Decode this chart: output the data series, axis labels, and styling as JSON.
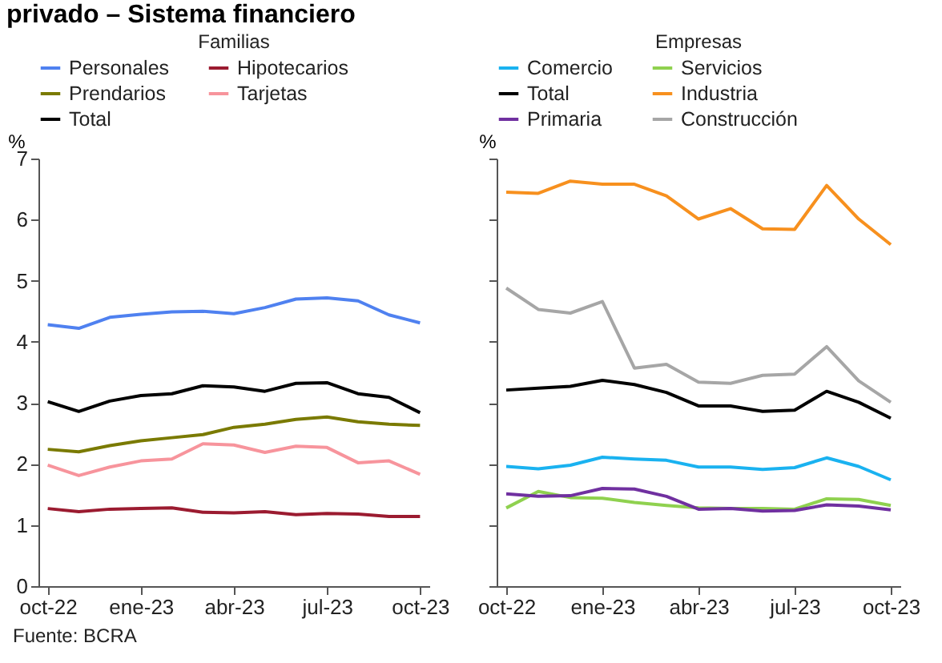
{
  "chart_data": [
    {
      "type": "line",
      "title": "Familias",
      "ylabel": "%",
      "categories": [
        "oct-22",
        null,
        null,
        "ene-23",
        null,
        null,
        "abr-23",
        null,
        null,
        "jul-23",
        null,
        null,
        "oct-23"
      ],
      "ylim": [
        0,
        7
      ],
      "yticks": [
        0,
        1,
        2,
        3,
        4,
        5,
        6,
        7
      ],
      "grid": false,
      "legend": "top",
      "annotations": [
        "privado – Sistema financiero",
        "Fuente: BCRA"
      ],
      "series": [
        {
          "name": "Personales",
          "color": "#4f81f0",
          "values": [
            4.28,
            4.22,
            4.4,
            4.45,
            4.49,
            4.5,
            4.46,
            4.56,
            4.7,
            4.72,
            4.67,
            4.44,
            4.31
          ]
        },
        {
          "name": "Hipotecarios",
          "color": "#9b1b30",
          "values": [
            1.27,
            1.22,
            1.26,
            1.27,
            1.28,
            1.21,
            1.2,
            1.22,
            1.17,
            1.19,
            1.18,
            1.14,
            1.14
          ]
        },
        {
          "name": "Prendarios",
          "color": "#7a7a00",
          "values": [
            2.24,
            2.2,
            2.3,
            2.38,
            2.43,
            2.48,
            2.6,
            2.65,
            2.73,
            2.77,
            2.69,
            2.65,
            2.63
          ]
        },
        {
          "name": "Tarjetas",
          "color": "#f7949c",
          "values": [
            1.98,
            1.81,
            1.95,
            2.05,
            2.08,
            2.33,
            2.31,
            2.19,
            2.29,
            2.27,
            2.02,
            2.05,
            1.83
          ]
        },
        {
          "name": "Total",
          "color": "#000000",
          "values": [
            3.02,
            2.86,
            3.03,
            3.12,
            3.15,
            3.28,
            3.26,
            3.19,
            3.32,
            3.33,
            3.15,
            3.09,
            2.84
          ]
        }
      ]
    },
    {
      "type": "line",
      "title": "Empresas",
      "ylabel": "%",
      "categories": [
        "oct-22",
        null,
        null,
        "ene-23",
        null,
        null,
        "abr-23",
        null,
        null,
        "jul-23",
        null,
        null,
        "oct-23"
      ],
      "ylim": [
        0,
        7
      ],
      "yticks": [
        0,
        1,
        2,
        3,
        4,
        5,
        6,
        7
      ],
      "grid": false,
      "legend": "top",
      "tick_labels": "x",
      "series": [
        {
          "name": "Comercio",
          "color": "#1ab2f0",
          "values": [
            1.96,
            1.92,
            1.98,
            2.11,
            2.08,
            2.06,
            1.95,
            1.95,
            1.91,
            1.94,
            2.1,
            1.96,
            1.74
          ]
        },
        {
          "name": "Servicios",
          "color": "#8fd14f",
          "values": [
            1.28,
            1.55,
            1.45,
            1.44,
            1.37,
            1.32,
            1.28,
            1.27,
            1.27,
            1.26,
            1.43,
            1.42,
            1.32
          ]
        },
        {
          "name": "Total",
          "color": "#000000",
          "values": [
            3.21,
            3.24,
            3.27,
            3.37,
            3.3,
            3.17,
            2.95,
            2.95,
            2.86,
            2.88,
            3.19,
            3.01,
            2.75
          ]
        },
        {
          "name": "Industria",
          "color": "#f7901e",
          "values": [
            6.45,
            6.43,
            6.63,
            6.58,
            6.58,
            6.39,
            6.01,
            6.18,
            5.85,
            5.84,
            6.56,
            6.01,
            5.59
          ]
        },
        {
          "name": "Primaria",
          "color": "#7030a0",
          "values": [
            1.51,
            1.47,
            1.48,
            1.6,
            1.59,
            1.47,
            1.26,
            1.27,
            1.23,
            1.24,
            1.33,
            1.31,
            1.25
          ]
        },
        {
          "name": "Construcción",
          "color": "#a6a6a6",
          "values": [
            4.88,
            4.53,
            4.47,
            4.66,
            3.57,
            3.63,
            3.34,
            3.32,
            3.45,
            3.47,
            3.92,
            3.36,
            3.01
          ]
        }
      ]
    }
  ]
}
